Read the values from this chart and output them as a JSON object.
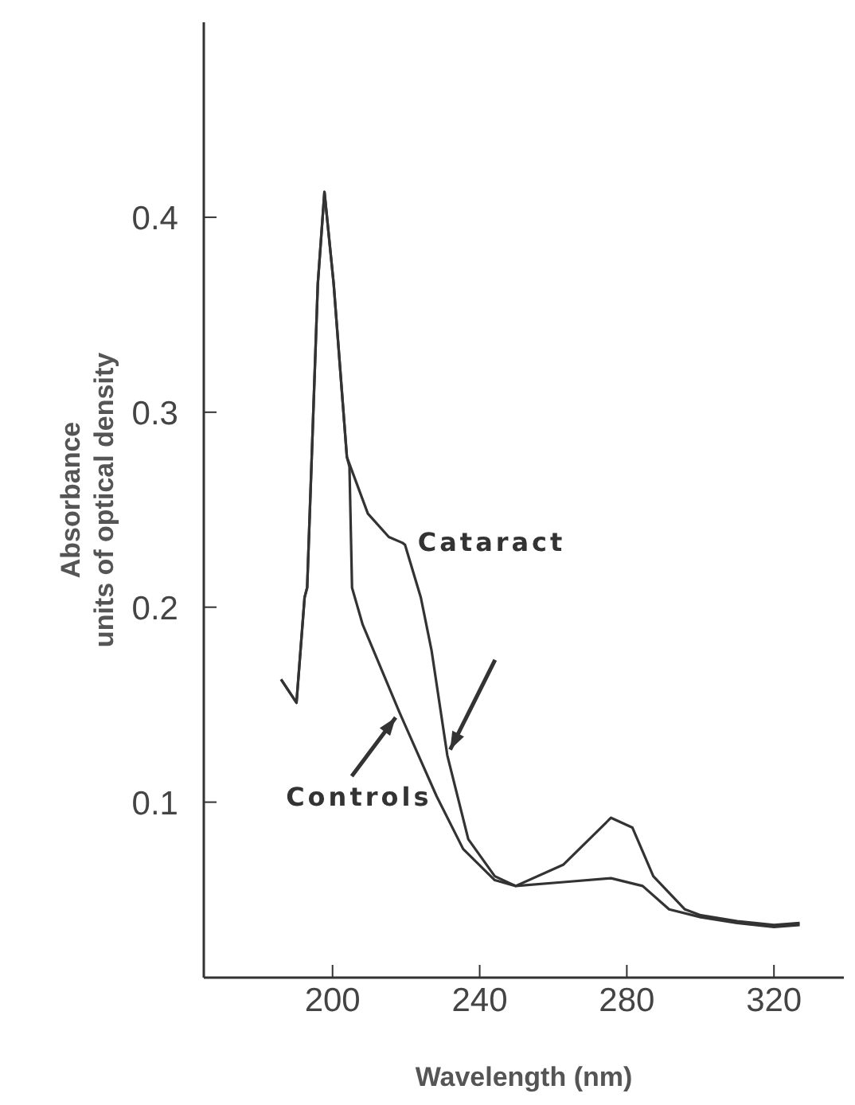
{
  "chart_data": {
    "type": "line",
    "xlabel": "Wavelength (nm)",
    "ylabel": "Absorbance\nunits of optical density",
    "xlim": [
      165,
      339
    ],
    "ylim": [
      0.01,
      0.5
    ],
    "xticks": [
      200,
      240,
      280,
      320
    ],
    "yticks": [
      0.1,
      0.2,
      0.3,
      0.4
    ],
    "grid": false,
    "marker": "none",
    "line_style": "solid",
    "series": [
      {
        "name": "Cataract",
        "color": "#333333",
        "x": [
          186,
          190.2,
          192.4,
          193.1,
          196,
          197.8,
          200.3,
          203.9,
          209.6,
          215.3,
          219,
          219.7,
          224,
          226.9,
          231.2,
          236.9,
          244.1,
          249.8,
          262.8,
          275.7,
          281.5,
          287.2,
          295.8,
          300.1,
          310,
          320,
          327
        ],
        "values": [
          0.163,
          0.151,
          0.205,
          0.21,
          0.366,
          0.413,
          0.366,
          0.277,
          0.248,
          0.236,
          0.233,
          0.232,
          0.205,
          0.178,
          0.124,
          0.081,
          0.062,
          0.057,
          0.068,
          0.092,
          0.087,
          0.062,
          0.045,
          0.042,
          0.039,
          0.037,
          0.038
        ]
      },
      {
        "name": "Controls",
        "color": "#333333",
        "x": [
          186,
          190.2,
          192.4,
          193.1,
          196,
          197.8,
          200.3,
          203.9,
          204.6,
          205.3,
          208.2,
          218.2,
          228.3,
          235.5,
          244.1,
          249.8,
          262.8,
          275.7,
          284.3,
          291.5,
          300.1,
          310,
          320,
          327
        ],
        "values": [
          0.163,
          0.151,
          0.205,
          0.21,
          0.366,
          0.413,
          0.366,
          0.277,
          0.272,
          0.21,
          0.191,
          0.146,
          0.103,
          0.076,
          0.06,
          0.057,
          0.059,
          0.061,
          0.057,
          0.045,
          0.041,
          0.038,
          0.036,
          0.037
        ]
      }
    ]
  }
}
